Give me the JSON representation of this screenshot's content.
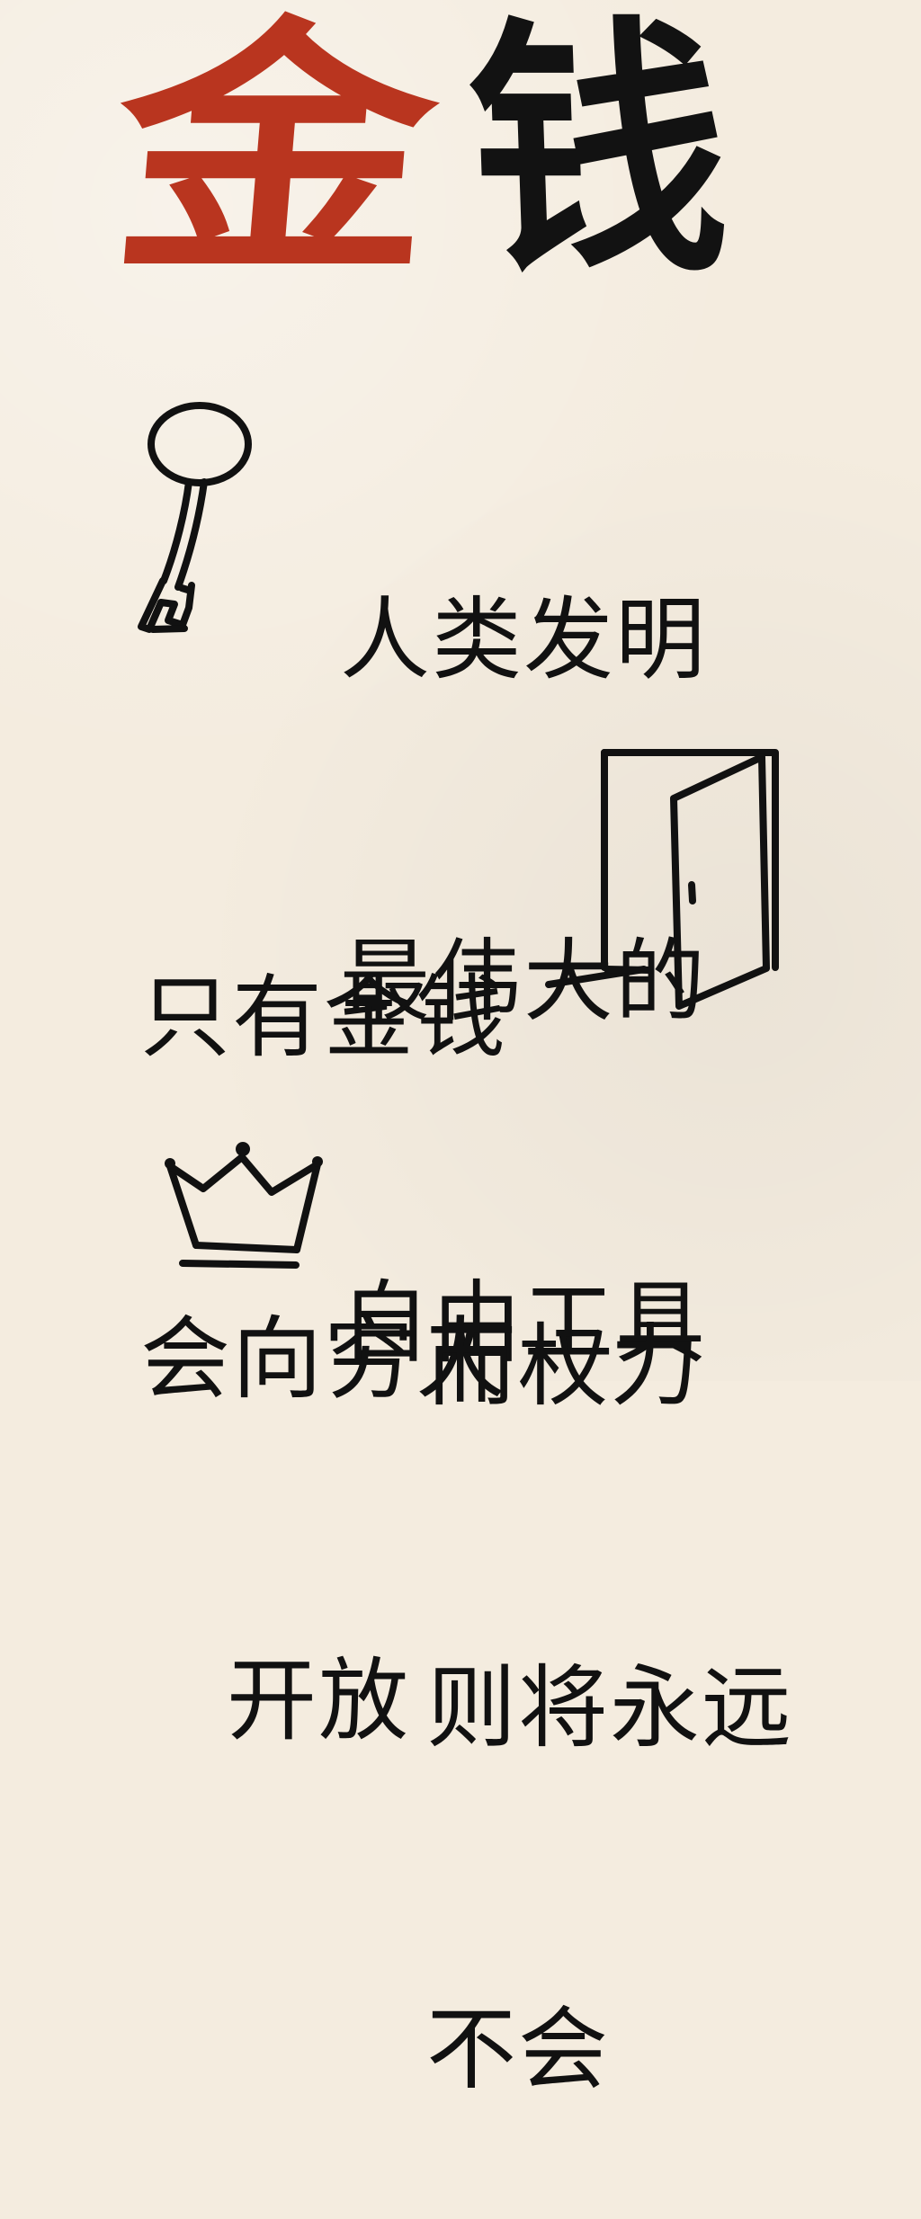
{
  "page": {
    "background_color": "#f4ecdf",
    "accent_red": "#b9351f",
    "ink_black": "#111111"
  },
  "title": {
    "char_1": "金",
    "char_2": "钱"
  },
  "blocks": {
    "block_1": {
      "lines": [
        "人类发明",
        "最伟大的",
        "自由工具"
      ]
    },
    "block_2": {
      "lines": [
        "只有金钱",
        "会向穷人",
        "开放"
      ]
    },
    "block_3": {
      "lines": [
        "而权力",
        "则将永远",
        "不会"
      ]
    }
  },
  "icons": {
    "key": "key-icon",
    "door": "door-icon",
    "crown": "crown-icon"
  }
}
